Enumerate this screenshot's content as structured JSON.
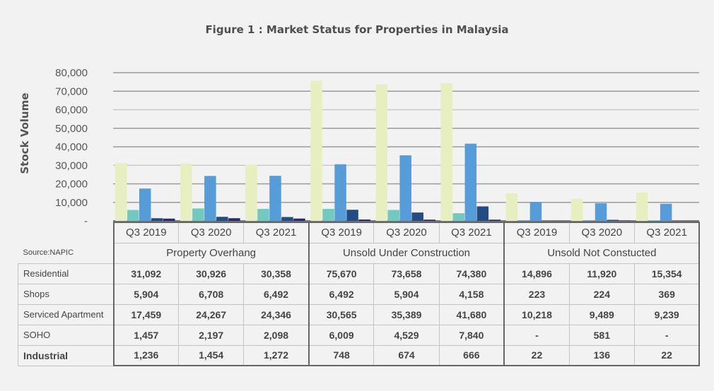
{
  "title": "Figure 1 : Market Status for Properties in Malaysia",
  "source": "Source:NAPIC",
  "chart_data": {
    "type": "bar",
    "title": "Figure 1 : Market Status for Properties in Malaysia",
    "xlabel": "",
    "ylabel": "Stock Volume",
    "ylim": [
      0,
      80000
    ],
    "yticks": [
      0,
      10000,
      20000,
      30000,
      40000,
      50000,
      60000,
      70000,
      80000
    ],
    "ytick_labels": [
      "-",
      "10,000",
      "20,000",
      "30,000",
      "40,000",
      "50,000",
      "60,000",
      "70,000",
      "80,000"
    ],
    "grid": true,
    "groups": [
      "Property Overhang",
      "Unsold Under Construction",
      "Unsold Not Constucted"
    ],
    "periods": [
      "Q3 2019",
      "Q3 2020",
      "Q3 2021"
    ],
    "categories": [
      "Q3 2019",
      "Q3 2020",
      "Q3 2021",
      "Q3 2019",
      "Q3 2020",
      "Q3 2021",
      "Q3 2019",
      "Q3 2020",
      "Q3 2021"
    ],
    "series": [
      {
        "name": "Residential",
        "color": "#e7efc0",
        "values": [
          31092,
          30926,
          30358,
          75670,
          73658,
          74380,
          14896,
          11920,
          15354
        ],
        "labels": [
          "31,092",
          "30,926",
          "30,358",
          "75,670",
          "73,658",
          "74,380",
          "14,896",
          "11,920",
          "15,354"
        ]
      },
      {
        "name": "Shops",
        "color": "#72c9bf",
        "values": [
          5904,
          6708,
          6492,
          6492,
          5904,
          4158,
          223,
          224,
          369
        ],
        "labels": [
          "5,904",
          "6,708",
          "6,492",
          "6,492",
          "5,904",
          "4,158",
          "223",
          "224",
          "369"
        ]
      },
      {
        "name": "Serviced Apartment",
        "color": "#559cd8",
        "values": [
          17459,
          24267,
          24346,
          30565,
          35389,
          41680,
          10218,
          9489,
          9239
        ],
        "labels": [
          "17,459",
          "24,267",
          "24,346",
          "30,565",
          "35,389",
          "41,680",
          "10,218",
          "9,489",
          "9,239"
        ]
      },
      {
        "name": "SOHO",
        "color": "#224c82",
        "values": [
          1457,
          2197,
          2098,
          6009,
          4529,
          7840,
          0,
          581,
          0
        ],
        "labels": [
          "1,457",
          "2,197",
          "2,098",
          "6,009",
          "4,529",
          "7,840",
          "-",
          "581",
          "-"
        ]
      },
      {
        "name": "Industrial",
        "color": "#272a6e",
        "values": [
          1236,
          1454,
          1272,
          748,
          674,
          666,
          22,
          136,
          22
        ],
        "labels": [
          "1,236",
          "1,454",
          "1,272",
          "748",
          "674",
          "666",
          "22",
          "136",
          "22"
        ]
      }
    ]
  }
}
